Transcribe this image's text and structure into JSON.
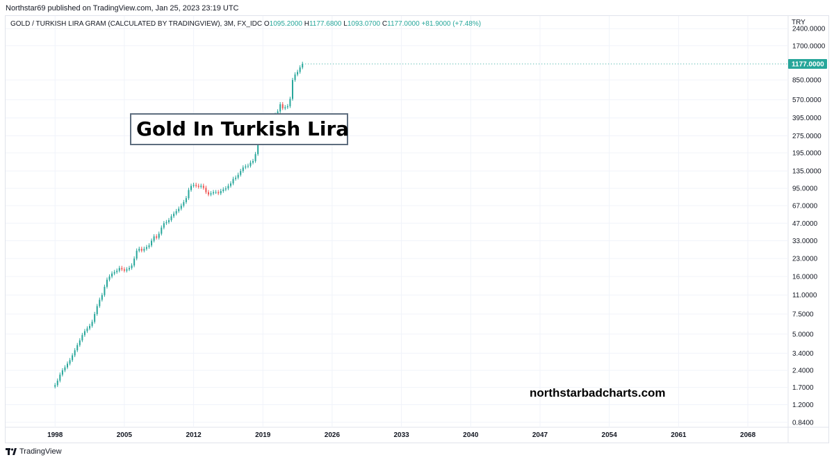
{
  "header": {
    "publish_line": "Northstar69 published on TradingView.com, Jan 25, 2023 23:19 UTC"
  },
  "legend": {
    "symbol": "GOLD / TURKISH LIRA GRAM (CALCULATED BY TRADINGVIEW), 3M, FX_IDC",
    "o_key": "O",
    "o_val": "1095.2000",
    "h_key": "H",
    "h_val": "1177.6800",
    "l_key": "L",
    "l_val": "1093.0700",
    "c_key": "C",
    "c_val": "1177.0000",
    "change": "+81.9000 (+7.48%)"
  },
  "annotation": {
    "title": "Gold In Turkish Lira"
  },
  "watermark": "northstarbadcharts.com",
  "price_axis": {
    "currency": "TRY"
  },
  "footer": {
    "brand": "TradingView",
    "logo_icon": "tradingview-logo-icon"
  },
  "colors": {
    "up": "#26a69a",
    "down": "#ef5350",
    "grid": "#f0f3fa",
    "last_price_bg": "#26a69a"
  },
  "chart_data": {
    "type": "candlestick",
    "scale": "log",
    "interval": "3M",
    "y_ticks": [
      "2400.0000",
      "1700.0000",
      "850.0000",
      "570.0000",
      "395.0000",
      "275.0000",
      "195.0000",
      "135.0000",
      "95.0000",
      "67.0000",
      "47.0000",
      "33.0000",
      "23.0000",
      "16.0000",
      "11.0000",
      "7.5000",
      "5.0000",
      "3.4000",
      "2.4000",
      "1.7000",
      "1.2000",
      "0.8400"
    ],
    "x_ticks": [
      "1998",
      "2005",
      "2012",
      "2019",
      "2026",
      "2033",
      "2040",
      "2047",
      "2054",
      "2061",
      "2068"
    ],
    "last_price_label": "1177.0000",
    "last_price": 1177,
    "xlim": [
      1993,
      2072
    ],
    "ylim": [
      0.76,
      3100
    ],
    "grid": true,
    "series": [
      {
        "points": [
          [
            1998.0,
            1.78
          ],
          [
            1998.25,
            1.95
          ],
          [
            1998.5,
            2.2
          ],
          [
            1998.75,
            2.4
          ],
          [
            1999.0,
            2.55
          ],
          [
            1999.25,
            2.75
          ],
          [
            1999.5,
            2.95
          ],
          [
            1999.75,
            3.25
          ],
          [
            2000.0,
            3.6
          ],
          [
            2000.25,
            4.0
          ],
          [
            2000.5,
            4.4
          ],
          [
            2000.75,
            4.9
          ],
          [
            2001.0,
            5.3
          ],
          [
            2001.25,
            5.6
          ],
          [
            2001.5,
            5.9
          ],
          [
            2001.75,
            6.4
          ],
          [
            2002.0,
            7.5
          ],
          [
            2002.25,
            8.8
          ],
          [
            2002.5,
            10.0
          ],
          [
            2002.75,
            11.0
          ],
          [
            2003.0,
            13.0
          ],
          [
            2003.25,
            15.0
          ],
          [
            2003.5,
            16.0
          ],
          [
            2003.75,
            17.0
          ],
          [
            2004.0,
            17.5
          ],
          [
            2004.25,
            18.0
          ],
          [
            2004.5,
            19.0
          ],
          [
            2004.75,
            18.5
          ],
          [
            2005.0,
            18.0
          ],
          [
            2005.25,
            18.5
          ],
          [
            2005.5,
            19.0
          ],
          [
            2005.75,
            20.0
          ],
          [
            2006.0,
            23.0
          ],
          [
            2006.25,
            27.0
          ],
          [
            2006.5,
            28.0
          ],
          [
            2006.75,
            27.0
          ],
          [
            2007.0,
            28.0
          ],
          [
            2007.25,
            29.0
          ],
          [
            2007.5,
            30.0
          ],
          [
            2007.75,
            33.0
          ],
          [
            2008.0,
            36.0
          ],
          [
            2008.25,
            35.0
          ],
          [
            2008.5,
            38.0
          ],
          [
            2008.75,
            43.0
          ],
          [
            2009.0,
            47.0
          ],
          [
            2009.25,
            48.0
          ],
          [
            2009.5,
            50.0
          ],
          [
            2009.75,
            54.0
          ],
          [
            2010.0,
            57.0
          ],
          [
            2010.25,
            60.0
          ],
          [
            2010.5,
            63.0
          ],
          [
            2010.75,
            67.0
          ],
          [
            2011.0,
            72.0
          ],
          [
            2011.25,
            78.0
          ],
          [
            2011.5,
            92.0
          ],
          [
            2011.75,
            100.0
          ],
          [
            2012.0,
            102.0
          ],
          [
            2012.25,
            100.0
          ],
          [
            2012.5,
            98.0
          ],
          [
            2012.75,
            100.0
          ],
          [
            2013.0,
            96.0
          ],
          [
            2013.25,
            88.0
          ],
          [
            2013.5,
            84.0
          ],
          [
            2013.75,
            86.0
          ],
          [
            2014.0,
            88.0
          ],
          [
            2014.25,
            88.0
          ],
          [
            2014.5,
            86.0
          ],
          [
            2014.75,
            90.0
          ],
          [
            2015.0,
            93.0
          ],
          [
            2015.25,
            95.0
          ],
          [
            2015.5,
            100.0
          ],
          [
            2015.75,
            105.0
          ],
          [
            2016.0,
            115.0
          ],
          [
            2016.25,
            118.0
          ],
          [
            2016.5,
            125.0
          ],
          [
            2016.75,
            135.0
          ],
          [
            2017.0,
            145.0
          ],
          [
            2017.25,
            148.0
          ],
          [
            2017.5,
            150.0
          ],
          [
            2017.75,
            160.0
          ],
          [
            2018.0,
            165.0
          ],
          [
            2018.25,
            190.0
          ],
          [
            2018.5,
            240.0
          ],
          [
            2018.75,
            250.0
          ],
          [
            2019.0,
            270.0
          ],
          [
            2019.25,
            290.0
          ],
          [
            2019.5,
            300.0
          ],
          [
            2019.75,
            330.0
          ],
          [
            2020.0,
            360.0
          ],
          [
            2020.25,
            420.0
          ],
          [
            2020.5,
            450.0
          ],
          [
            2020.75,
            520.0
          ],
          [
            2021.0,
            480.0
          ],
          [
            2021.25,
            490.0
          ],
          [
            2021.5,
            500.0
          ],
          [
            2021.75,
            580.0
          ],
          [
            2022.0,
            850.0
          ],
          [
            2022.25,
            950.0
          ],
          [
            2022.5,
            1000.0
          ],
          [
            2022.75,
            1095.2
          ],
          [
            2023.0,
            1177.0
          ]
        ]
      }
    ]
  }
}
